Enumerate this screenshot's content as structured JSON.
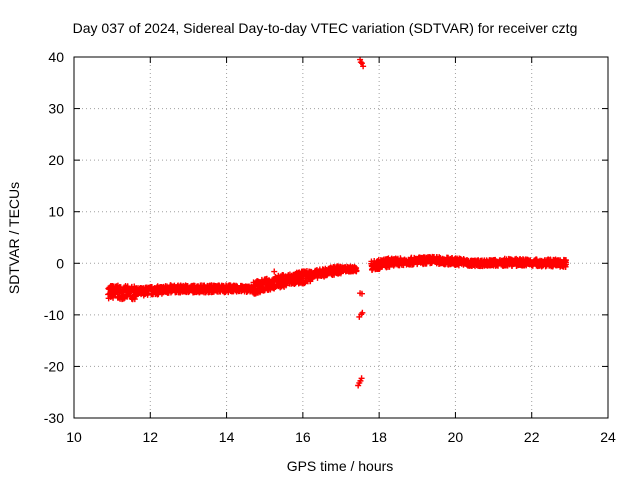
{
  "chart_data": {
    "type": "scatter",
    "title": "Day 037 of 2024, Sidereal Day-to-day VTEC variation (SDTVAR) for receiver cztg",
    "xlabel": "GPS time / hours",
    "ylabel": "SDTVAR / TECUs",
    "xlim": [
      10,
      24
    ],
    "ylim": [
      -30,
      40
    ],
    "xticks": [
      "10",
      "12",
      "14",
      "16",
      "18",
      "20",
      "22",
      "24"
    ],
    "yticks": [
      "-30",
      "-20",
      "-10",
      "0",
      "10",
      "20",
      "30",
      "40"
    ],
    "grid": true,
    "marker": "plus",
    "colors": {
      "series": "#ff0000",
      "grid": "#a0a0a0",
      "frame": "#000000"
    },
    "series": [
      {
        "name": "SDTVAR cztg",
        "band_segments": [
          {
            "x_start": 10.9,
            "x_end": 11.6,
            "y_start": -5.5,
            "y_end": -5.8,
            "spread": 2.6
          },
          {
            "x_start": 11.6,
            "x_end": 12.6,
            "y_start": -5.6,
            "y_end": -5.0,
            "spread": 1.6
          },
          {
            "x_start": 12.6,
            "x_end": 14.1,
            "y_start": -5.0,
            "y_end": -4.9,
            "spread": 1.4
          },
          {
            "x_start": 14.1,
            "x_end": 14.7,
            "y_start": -4.9,
            "y_end": -5.0,
            "spread": 1.2
          },
          {
            "x_start": 14.7,
            "x_end": 15.4,
            "y_start": -4.8,
            "y_end": -3.5,
            "spread": 2.4
          },
          {
            "x_start": 15.4,
            "x_end": 16.2,
            "y_start": -3.5,
            "y_end": -2.5,
            "spread": 2.4
          },
          {
            "x_start": 16.2,
            "x_end": 17.0,
            "y_start": -2.3,
            "y_end": -1.2,
            "spread": 1.6
          },
          {
            "x_start": 17.0,
            "x_end": 17.4,
            "y_start": -1.2,
            "y_end": -1.1,
            "spread": 1.0
          },
          {
            "x_start": 17.8,
            "x_end": 18.3,
            "y_start": -0.5,
            "y_end": 0.2,
            "spread": 1.8
          },
          {
            "x_start": 18.3,
            "x_end": 19.4,
            "y_start": 0.2,
            "y_end": 0.6,
            "spread": 1.4
          },
          {
            "x_start": 19.4,
            "x_end": 20.3,
            "y_start": 0.6,
            "y_end": 0.2,
            "spread": 1.4
          },
          {
            "x_start": 20.3,
            "x_end": 21.3,
            "y_start": 0.0,
            "y_end": 0.1,
            "spread": 1.2
          },
          {
            "x_start": 21.3,
            "x_end": 22.9,
            "y_start": 0.2,
            "y_end": 0.0,
            "spread": 1.4
          }
        ],
        "points": [
          {
            "x": 11.55,
            "y": -5.3
          },
          {
            "x": 15.25,
            "y": -1.6
          },
          {
            "x": 17.3,
            "y": -0.8
          },
          {
            "x": 17.5,
            "y": 39.5
          },
          {
            "x": 17.55,
            "y": 38.8
          },
          {
            "x": 17.58,
            "y": 38.2
          },
          {
            "x": 17.52,
            "y": 39.0
          },
          {
            "x": 17.55,
            "y": -5.9
          },
          {
            "x": 17.5,
            "y": -5.8
          },
          {
            "x": 17.48,
            "y": -10.4
          },
          {
            "x": 17.53,
            "y": -9.9
          },
          {
            "x": 17.56,
            "y": -9.6
          },
          {
            "x": 17.45,
            "y": -23.7
          },
          {
            "x": 17.48,
            "y": -23.2
          },
          {
            "x": 17.51,
            "y": -22.8
          },
          {
            "x": 17.54,
            "y": -22.3
          }
        ]
      }
    ]
  }
}
